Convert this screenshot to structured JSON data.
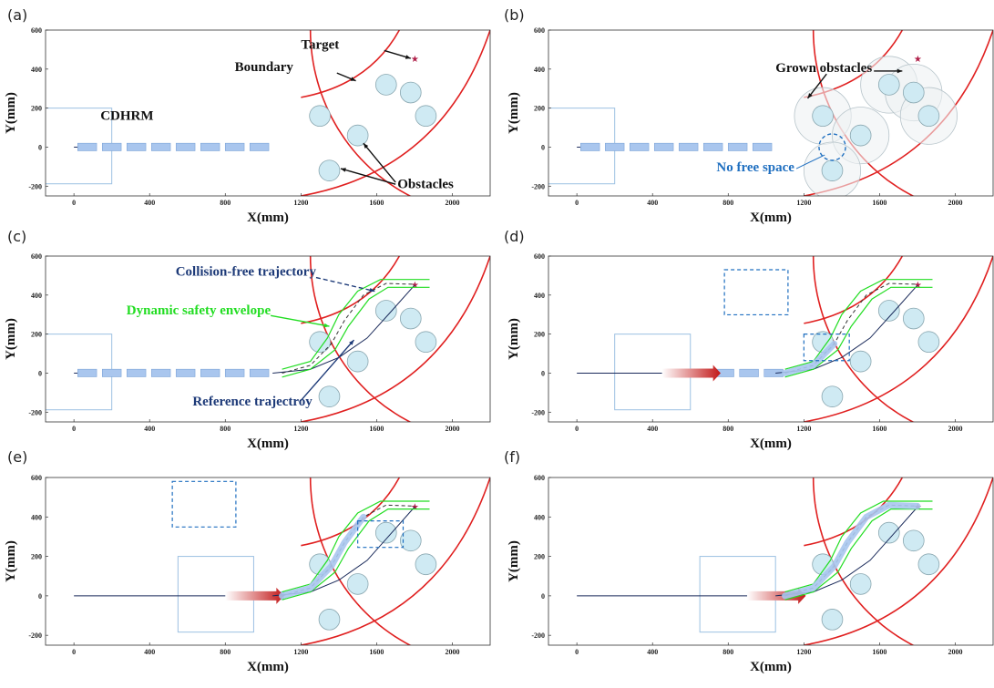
{
  "panels": [
    {
      "letter": "(a)",
      "variant": "a"
    },
    {
      "letter": "(b)",
      "variant": "b"
    },
    {
      "letter": "(c)",
      "variant": "c"
    },
    {
      "letter": "(d)",
      "variant": "d"
    },
    {
      "letter": "(e)",
      "variant": "e"
    },
    {
      "letter": "(f)",
      "variant": "f"
    }
  ],
  "axes": {
    "xlabel": "X(mm)",
    "ylabel": "Y(mm)",
    "x_ticks": [
      "0",
      "400",
      "800",
      "1200",
      "1600",
      "2000"
    ],
    "y_ticks": [
      "600",
      "400",
      "200",
      "0",
      "-200"
    ],
    "x_range": [
      -150,
      2200
    ],
    "y_range": [
      -250,
      600
    ]
  },
  "annotations": {
    "target": "Target",
    "boundary": "Boundary",
    "robot": "CDHRM",
    "obstacles": "Obstacles",
    "grown_obstacles": "Grown obstacles",
    "no_free_space": "No free space",
    "collision_free": "Collision-free trajectory",
    "safety_envelope": "Dynamic safety envelope",
    "reference": "Reference trajectroy"
  },
  "colors": {
    "boundary": "#e02020",
    "obstacle_fill": "#cfeaf3",
    "obstacle_stroke": "#8aa7b0",
    "link_fill": "#a9c6ee",
    "envelope": "#22dd22",
    "reference": "#1a2a5a",
    "annotation_blue": "#1f6fc0",
    "annotation_navy": "#1d3a78",
    "annotation_green": "#22dd22"
  }
}
